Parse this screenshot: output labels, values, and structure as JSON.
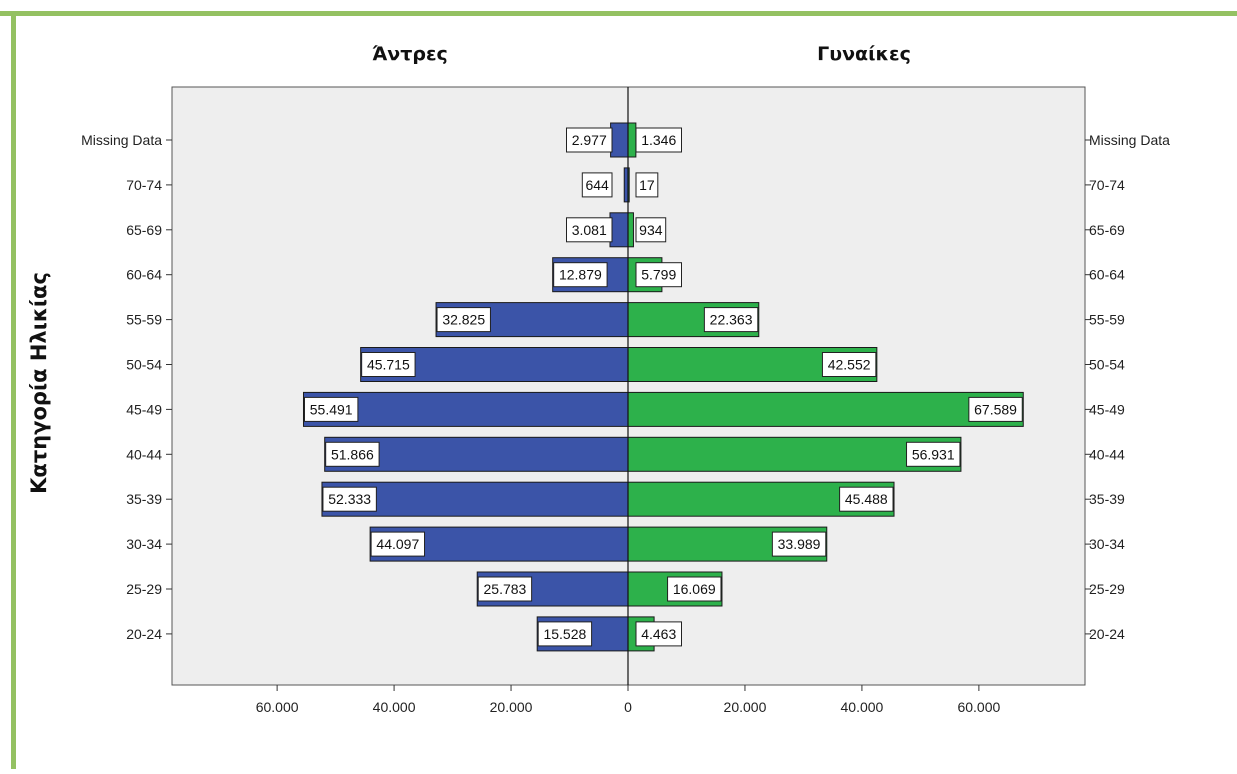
{
  "chart_data": {
    "type": "bar",
    "subtype": "population-pyramid",
    "categories": [
      "Missing Data",
      "70-74",
      "65-69",
      "60-64",
      "55-59",
      "50-54",
      "45-49",
      "40-44",
      "35-39",
      "30-34",
      "25-29",
      "20-24"
    ],
    "series": [
      {
        "name": "Άντρες",
        "values": [
          2977,
          644,
          3081,
          12879,
          32825,
          45715,
          55491,
          51866,
          52333,
          44097,
          25783,
          15528
        ],
        "labels": [
          "2.977",
          "644",
          "3.081",
          "12.879",
          "32.825",
          "45.715",
          "55.491",
          "51.866",
          "52.333",
          "44.097",
          "25.783",
          "15.528"
        ],
        "color": "#3b54a8",
        "side": "left"
      },
      {
        "name": "Γυναίκες",
        "values": [
          1346,
          17,
          934,
          5799,
          22363,
          42552,
          67589,
          56931,
          45488,
          33989,
          16069,
          4463
        ],
        "labels": [
          "1.346",
          "17",
          "934",
          "5.799",
          "22.363",
          "42.552",
          "67.589",
          "56.931",
          "45.488",
          "33.989",
          "16.069",
          "4.463"
        ],
        "color": "#2db14b",
        "side": "right"
      }
    ],
    "ylabel": "Κατηγορία Ηλικίας",
    "xlim": [
      -80000,
      80000
    ],
    "xticks": [
      -60000,
      -40000,
      -20000,
      0,
      20000,
      40000,
      60000
    ],
    "xtick_labels": [
      "60.000",
      "40.000",
      "20.000",
      "0",
      "20.000",
      "40.000",
      "60.000"
    ],
    "grid": false,
    "plot_background": "#eeeeee",
    "frame_color": "#94c162"
  }
}
